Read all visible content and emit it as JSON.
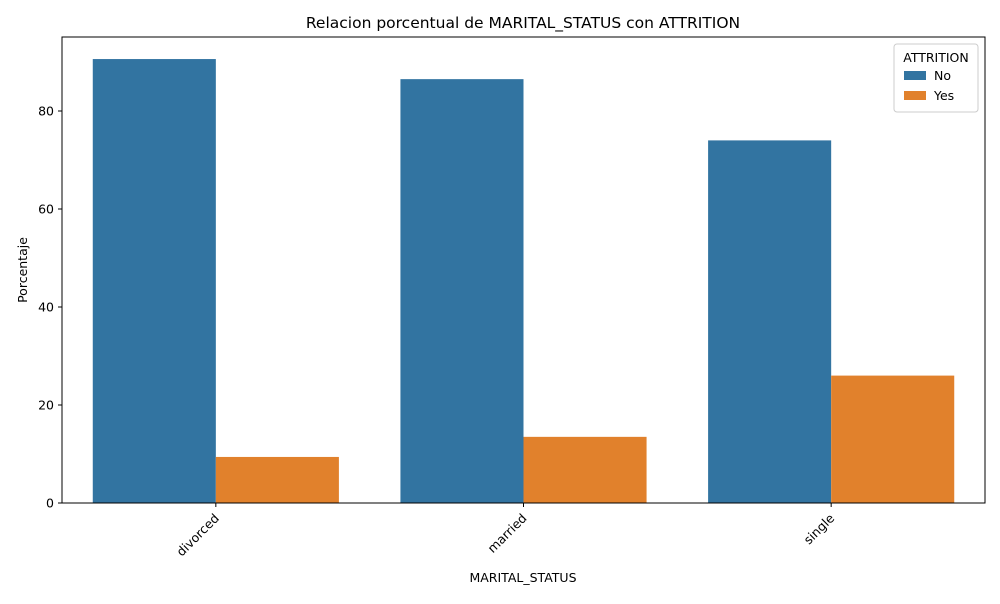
{
  "chart_data": {
    "type": "bar",
    "title": "Relacion porcentual de MARITAL_STATUS con ATTRITION",
    "xlabel": "MARITAL_STATUS",
    "ylabel": "Porcentaje",
    "categories": [
      "divorced",
      "married",
      "single"
    ],
    "series": [
      {
        "name": "No",
        "color": "#3274a1",
        "values": [
          90.6,
          86.5,
          74.0
        ]
      },
      {
        "name": "Yes",
        "color": "#e1812c",
        "values": [
          9.4,
          13.5,
          26.0
        ]
      }
    ],
    "ylim": [
      0,
      95.1
    ],
    "yticks": [
      0,
      20,
      40,
      60,
      80
    ],
    "legend": {
      "title": "ATTRITION",
      "position": "top-right"
    },
    "grid": false
  }
}
